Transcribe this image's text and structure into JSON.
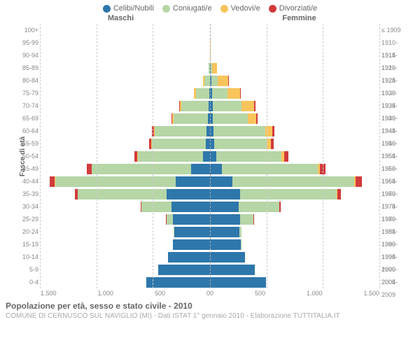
{
  "legend": [
    {
      "label": "Celibi/Nubili",
      "color": "#2e77ab"
    },
    {
      "label": "Coniugati/e",
      "color": "#b6d6a6"
    },
    {
      "label": "Vedovi/e",
      "color": "#f9c45c"
    },
    {
      "label": "Divorziati/e",
      "color": "#d13b3b"
    }
  ],
  "headers": {
    "male": "Maschi",
    "female": "Femmine"
  },
  "ylabels": {
    "left": "Fasce di età",
    "right": "Anni di nascita"
  },
  "xaxis": {
    "max": 1500,
    "ticks_m": [
      "1.500",
      "1.000",
      "500",
      "0"
    ],
    "ticks_f": [
      "0",
      "500",
      "1.000",
      "1.500"
    ]
  },
  "title": "Popolazione per età, sesso e stato civile - 2010",
  "subtitle": "COMUNE DI CERNUSCO SUL NAVIGLIO (MI) - Dati ISTAT 1° gennaio 2010 - Elaborazione TUTTITALIA.IT",
  "categories": [
    "celibi",
    "coniugati",
    "vedovi",
    "divorziati"
  ],
  "rows": [
    {
      "age": "100+",
      "birth": "≤ 1909",
      "m": {
        "celibi": 2,
        "coniugati": 0,
        "vedovi": 1,
        "divorziati": 0
      },
      "f": {
        "celibi": 3,
        "coniugati": 0,
        "vedovi": 8,
        "divorziati": 0
      }
    },
    {
      "age": "95-99",
      "birth": "1910-1914",
      "m": {
        "celibi": 3,
        "coniugati": 3,
        "vedovi": 3,
        "divorziati": 0
      },
      "f": {
        "celibi": 6,
        "coniugati": 1,
        "vedovi": 28,
        "divorziati": 0
      }
    },
    {
      "age": "90-94",
      "birth": "1915-1919",
      "m": {
        "celibi": 5,
        "coniugati": 18,
        "vedovi": 12,
        "divorziati": 0
      },
      "f": {
        "celibi": 12,
        "coniugati": 8,
        "vedovi": 95,
        "divorziati": 0
      }
    },
    {
      "age": "85-89",
      "birth": "1920-1924",
      "m": {
        "celibi": 10,
        "coniugati": 95,
        "vedovi": 45,
        "divorziati": 0
      },
      "f": {
        "celibi": 25,
        "coniugati": 55,
        "vedovi": 230,
        "divorziati": 2
      }
    },
    {
      "age": "80-84",
      "birth": "1925-1929",
      "m": {
        "celibi": 15,
        "coniugati": 235,
        "vedovi": 55,
        "divorziati": 3
      },
      "f": {
        "celibi": 35,
        "coniugati": 170,
        "vedovi": 285,
        "divorziati": 5
      }
    },
    {
      "age": "75-79",
      "birth": "1930-1934",
      "m": {
        "celibi": 20,
        "coniugati": 390,
        "vedovi": 50,
        "divorziati": 5
      },
      "f": {
        "celibi": 40,
        "coniugati": 330,
        "vedovi": 260,
        "divorziati": 10
      }
    },
    {
      "age": "70-74",
      "birth": "1935-1939",
      "m": {
        "celibi": 30,
        "coniugati": 560,
        "vedovi": 40,
        "divorziati": 12
      },
      "f": {
        "celibi": 45,
        "coniugati": 500,
        "vedovi": 210,
        "divorziati": 20
      }
    },
    {
      "age": "65-69",
      "birth": "1940-1944",
      "m": {
        "celibi": 35,
        "coniugati": 640,
        "vedovi": 25,
        "divorziati": 18
      },
      "f": {
        "celibi": 50,
        "coniugati": 580,
        "vedovi": 140,
        "divorziati": 25
      }
    },
    {
      "age": "60-64",
      "birth": "1945-1949",
      "m": {
        "celibi": 50,
        "coniugati": 780,
        "vedovi": 20,
        "divorziati": 30
      },
      "f": {
        "celibi": 55,
        "coniugati": 740,
        "vedovi": 95,
        "divorziati": 35
      }
    },
    {
      "age": "55-59",
      "birth": "1950-1954",
      "m": {
        "celibi": 65,
        "coniugati": 790,
        "vedovi": 12,
        "divorziati": 35
      },
      "f": {
        "celibi": 60,
        "coniugati": 760,
        "vedovi": 60,
        "divorziati": 40
      }
    },
    {
      "age": "50-54",
      "birth": "1955-1959",
      "m": {
        "celibi": 95,
        "coniugati": 860,
        "vedovi": 8,
        "divorziati": 40
      },
      "f": {
        "celibi": 80,
        "coniugati": 850,
        "vedovi": 40,
        "divorziati": 50
      }
    },
    {
      "age": "45-49",
      "birth": "1960-1964",
      "m": {
        "celibi": 195,
        "coniugati": 1030,
        "vedovi": 5,
        "divorziati": 50
      },
      "f": {
        "celibi": 130,
        "coniugati": 1025,
        "vedovi": 25,
        "divorziati": 60
      }
    },
    {
      "age": "40-44",
      "birth": "1965-1969",
      "m": {
        "celibi": 310,
        "coniugati": 1100,
        "vedovi": 3,
        "divorziati": 45
      },
      "f": {
        "celibi": 210,
        "coniugati": 1140,
        "vedovi": 15,
        "divorziati": 55
      }
    },
    {
      "age": "35-39",
      "birth": "1970-1974",
      "m": {
        "celibi": 430,
        "coniugati": 880,
        "vedovi": 1,
        "divorziati": 30
      },
      "f": {
        "celibi": 305,
        "coniugati": 970,
        "vedovi": 8,
        "divorziati": 35
      }
    },
    {
      "age": "30-34",
      "birth": "1975-1979",
      "m": {
        "celibi": 530,
        "coniugati": 420,
        "vedovi": 0,
        "divorziati": 12
      },
      "f": {
        "celibi": 395,
        "coniugati": 555,
        "vedovi": 3,
        "divorziati": 15
      }
    },
    {
      "age": "25-29",
      "birth": "1980-1984",
      "m": {
        "celibi": 640,
        "coniugati": 120,
        "vedovi": 0,
        "divorziati": 3
      },
      "f": {
        "celibi": 530,
        "coniugati": 225,
        "vedovi": 1,
        "divorziati": 5
      }
    },
    {
      "age": "20-24",
      "birth": "1985-1989",
      "m": {
        "celibi": 680,
        "coniugati": 15,
        "vedovi": 0,
        "divorziati": 0
      },
      "f": {
        "celibi": 600,
        "coniugati": 45,
        "vedovi": 0,
        "divorziati": 1
      }
    },
    {
      "age": "15-19",
      "birth": "1990-1994",
      "m": {
        "celibi": 700,
        "coniugati": 0,
        "vedovi": 0,
        "divorziati": 0
      },
      "f": {
        "celibi": 640,
        "coniugati": 2,
        "vedovi": 0,
        "divorziati": 0
      }
    },
    {
      "age": "10-14",
      "birth": "1995-1999",
      "m": {
        "celibi": 745,
        "coniugati": 0,
        "vedovi": 0,
        "divorziati": 0
      },
      "f": {
        "celibi": 685,
        "coniugati": 0,
        "vedovi": 0,
        "divorziati": 0
      }
    },
    {
      "age": "5-9",
      "birth": "2000-2004",
      "m": {
        "celibi": 830,
        "coniugati": 0,
        "vedovi": 0,
        "divorziati": 0
      },
      "f": {
        "celibi": 770,
        "coniugati": 0,
        "vedovi": 0,
        "divorziati": 0
      }
    },
    {
      "age": "0-4",
      "birth": "2005-2009",
      "m": {
        "celibi": 920,
        "coniugati": 0,
        "vedovi": 0,
        "divorziati": 0
      },
      "f": {
        "celibi": 860,
        "coniugati": 0,
        "vedovi": 0,
        "divorziati": 0
      }
    }
  ]
}
